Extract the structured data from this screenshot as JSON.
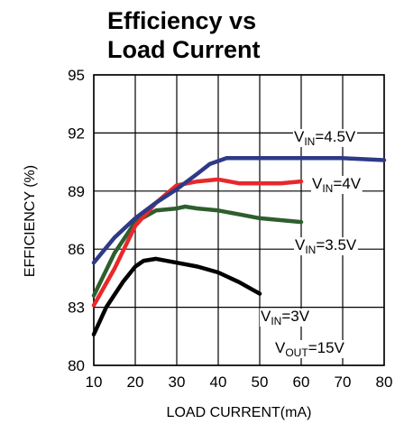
{
  "chart_data": {
    "type": "line",
    "title_lines": [
      "Efficiency vs",
      "Load Current"
    ],
    "xlabel": "LOAD CURRENT(mA)",
    "ylabel": "EFFICIENCY (%)",
    "xlim": [
      10,
      80
    ],
    "ylim": [
      80,
      95
    ],
    "xticks": [
      10,
      20,
      30,
      40,
      50,
      60,
      70,
      80
    ],
    "yticks": [
      80,
      83,
      86,
      89,
      92,
      95
    ],
    "grid": true,
    "series": [
      {
        "name": "VIN=4.5V",
        "color": "#2e3a87",
        "x": [
          10,
          15,
          20,
          25,
          30,
          35,
          38,
          42,
          50,
          60,
          70,
          80
        ],
        "y": [
          85.3,
          86.6,
          87.6,
          88.4,
          89.1,
          89.9,
          90.4,
          90.7,
          90.7,
          90.7,
          90.7,
          90.6
        ]
      },
      {
        "name": "VIN=4V",
        "color": "#e8282b",
        "x": [
          10,
          15,
          20,
          25,
          30,
          35,
          40,
          45,
          50,
          55,
          60
        ],
        "y": [
          83.1,
          85.0,
          87.2,
          88.4,
          89.3,
          89.5,
          89.6,
          89.4,
          89.4,
          89.4,
          89.5
        ]
      },
      {
        "name": "VIN=3.5V",
        "color": "#2e5e2e",
        "x": [
          10,
          15,
          20,
          25,
          30,
          32,
          35,
          40,
          45,
          50,
          60
        ],
        "y": [
          83.6,
          85.8,
          87.4,
          88.0,
          88.1,
          88.2,
          88.1,
          88.0,
          87.8,
          87.6,
          87.4
        ]
      },
      {
        "name": "VIN=3V",
        "color": "#000000",
        "x": [
          10,
          13,
          17,
          20,
          22,
          25,
          30,
          35,
          40,
          45,
          50
        ],
        "y": [
          81.6,
          83.0,
          84.3,
          85.1,
          85.4,
          85.5,
          85.3,
          85.1,
          84.8,
          84.3,
          83.7
        ]
      }
    ],
    "annotations": [
      {
        "main": "V",
        "sub": "IN",
        "rest": "=4.5V"
      },
      {
        "main": "V",
        "sub": "IN",
        "rest": "=4V"
      },
      {
        "main": "V",
        "sub": "IN",
        "rest": "=3.5V"
      },
      {
        "main": "V",
        "sub": "IN",
        "rest": "=3V"
      },
      {
        "main": "V",
        "sub": "OUT",
        "rest": "=15V"
      }
    ]
  }
}
